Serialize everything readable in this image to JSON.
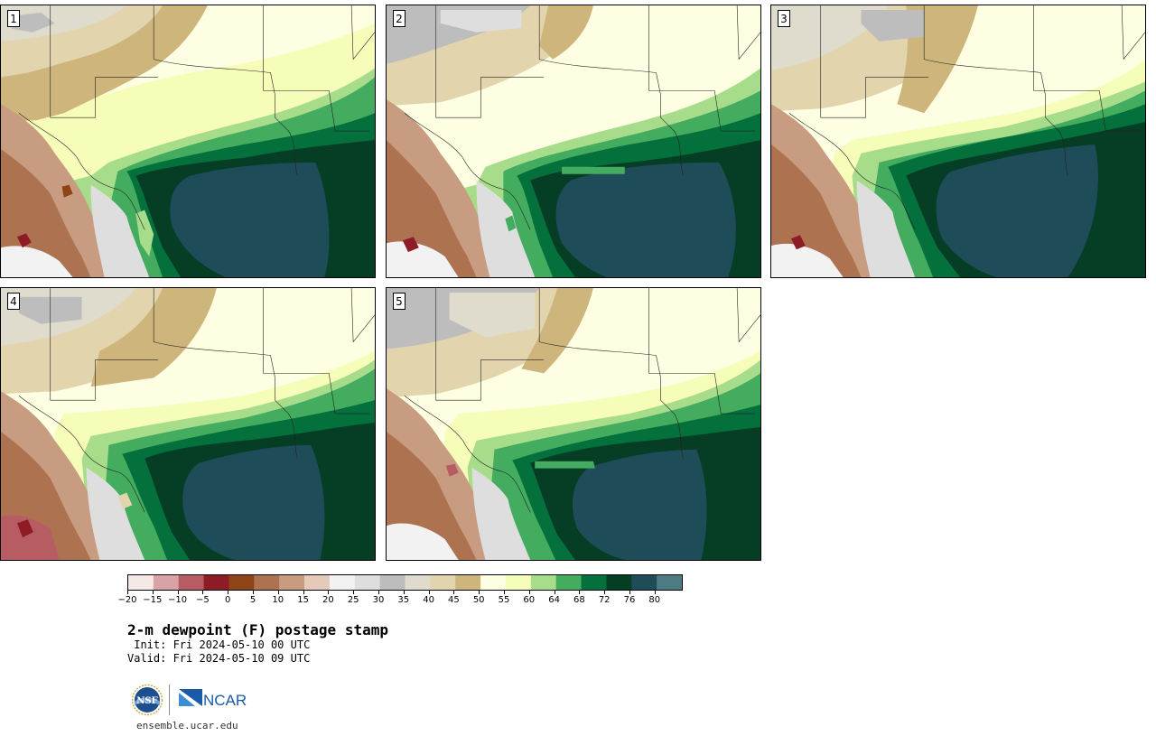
{
  "panels": [
    {
      "number": "1"
    },
    {
      "number": "2"
    },
    {
      "number": "3"
    },
    {
      "number": "4"
    },
    {
      "number": "5"
    }
  ],
  "colorbar": {
    "tick_labels": [
      "−20",
      "−15",
      "−10",
      "−5",
      "0",
      "5",
      "10",
      "15",
      "20",
      "25",
      "30",
      "35",
      "40",
      "45",
      "50",
      "55",
      "60",
      "64",
      "68",
      "72",
      "76",
      "80"
    ],
    "colors": [
      "#f4e9e6",
      "#d8a3a7",
      "#b85c63",
      "#8e1c27",
      "#8e4417",
      "#ad7351",
      "#c89c80",
      "#e6cab9",
      "#f2f2f2",
      "#dedede",
      "#bdbdbd",
      "#dfdcce",
      "#e2d5ad",
      "#cdb57c",
      "#fefee2",
      "#f6fdb8",
      "#a7dc8b",
      "#44ac5f",
      "#04713c",
      "#063d25",
      "#1e4c58",
      "#4d7b83"
    ]
  },
  "legend": {
    "title": "2-m dewpoint (F) postage stamp",
    "init": " Init: Fri 2024-05-10 00 UTC",
    "valid": "Valid: Fri 2024-05-10 09 UTC"
  },
  "logos": {
    "nsf": "NSF",
    "ncar": "NCAR"
  },
  "footer": {
    "url": "ensemble.ucar.edu"
  }
}
